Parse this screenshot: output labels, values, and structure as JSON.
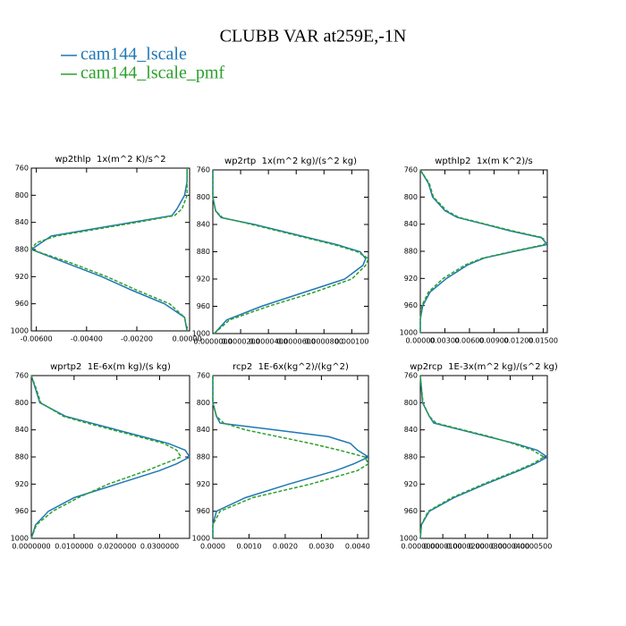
{
  "title": "CLUBB VAR at259E,-1N",
  "legend": [
    {
      "name": "cam144_lscale",
      "color": "#1f77b4"
    },
    {
      "name": "cam144_lscale_pmf",
      "color": "#2ca02c"
    }
  ],
  "chart_data": [
    {
      "type": "line",
      "title": "wp2thlp  1x(m^2 K)/s^2",
      "y": [
        760,
        780,
        800,
        820,
        830,
        840,
        850,
        860,
        870,
        880,
        890,
        900,
        920,
        940,
        960,
        980,
        1000
      ],
      "ylim": [
        760,
        1000
      ],
      "y_inverted": true,
      "yticks": [
        760,
        800,
        840,
        880,
        920,
        960,
        1000
      ],
      "xlim": [
        -0.0062,
        0.0001
      ],
      "xticks": [
        {
          "value": -0.006,
          "label": "-0.00600"
        },
        {
          "value": -0.004,
          "label": "-0.00400"
        },
        {
          "value": -0.002,
          "label": "-0.00200"
        },
        {
          "value": 0,
          "label": "0.00000"
        }
      ],
      "series": [
        {
          "values": [
            0,
            0,
            -0.0001,
            -0.0004,
            -0.0006,
            -0.0022,
            -0.0038,
            -0.0054,
            -0.0058,
            -0.0062,
            -0.0055,
            -0.0048,
            -0.0034,
            -0.0022,
            -0.0009,
            -0.0001,
            0
          ]
        },
        {
          "values": [
            0,
            0,
            0,
            -0.0002,
            -0.0005,
            -0.002,
            -0.0036,
            -0.0052,
            -0.006,
            -0.0062,
            -0.0054,
            -0.0046,
            -0.0032,
            -0.002,
            -0.0007,
            -0.0001,
            0
          ]
        }
      ]
    },
    {
      "type": "line",
      "title": "wp2rtp  1x(m^2 kg)/(s^2 kg)",
      "y": [
        760,
        780,
        800,
        820,
        830,
        840,
        850,
        860,
        870,
        880,
        890,
        900,
        920,
        940,
        960,
        980,
        1000
      ],
      "ylim": [
        760,
        1000
      ],
      "y_inverted": true,
      "yticks": [
        760,
        800,
        840,
        880,
        920,
        960,
        1000
      ],
      "xlim": [
        0,
        0.000112
      ],
      "xticks": [
        {
          "value": 0,
          "label": "0.0000000"
        },
        {
          "value": 2e-05,
          "label": "0.0000200"
        },
        {
          "value": 4e-05,
          "label": "0.0000400"
        },
        {
          "value": 6e-05,
          "label": "0.0000600"
        },
        {
          "value": 8e-05,
          "label": "0.0000800"
        },
        {
          "value": 0.0001,
          "label": "0.000100"
        }
      ],
      "series": [
        {
          "values": [
            0,
            0,
            0,
            2e-06,
            6e-06,
            3e-05,
            5e-05,
            7e-05,
            9e-05,
            0.000106,
            0.00011,
            0.000108,
            9.5e-05,
            6.5e-05,
            3.5e-05,
            1e-05,
            1e-06
          ]
        },
        {
          "values": [
            0,
            0,
            0,
            2e-06,
            7e-06,
            2.8e-05,
            4.8e-05,
            6.8e-05,
            8.8e-05,
            0.000104,
            0.000112,
            0.00011,
            0.0001,
            7.2e-05,
            4e-05,
            1.2e-05,
            1e-06
          ]
        }
      ]
    },
    {
      "type": "line",
      "title": "wpthlp2  1x(m K^2)/s",
      "y": [
        760,
        780,
        800,
        820,
        830,
        840,
        850,
        860,
        870,
        880,
        890,
        900,
        920,
        940,
        960,
        980,
        1000
      ],
      "ylim": [
        760,
        1000
      ],
      "y_inverted": true,
      "yticks": [
        760,
        800,
        840,
        880,
        920,
        960,
        1000
      ],
      "xlim": [
        0,
        0.0155
      ],
      "xticks": [
        {
          "value": 0,
          "label": "0.00000"
        },
        {
          "value": 0.003,
          "label": "0.00300"
        },
        {
          "value": 0.006,
          "label": "0.00600"
        },
        {
          "value": 0.009,
          "label": "0.00900"
        },
        {
          "value": 0.012,
          "label": "0.01200"
        },
        {
          "value": 0.015,
          "label": "0.01500"
        }
      ],
      "series": [
        {
          "values": [
            0,
            0.001,
            0.0015,
            0.003,
            0.0045,
            0.0078,
            0.011,
            0.0148,
            0.0155,
            0.0115,
            0.0078,
            0.0058,
            0.0032,
            0.0012,
            0.0003,
            0,
            0
          ]
        },
        {
          "values": [
            0,
            0.0011,
            0.0016,
            0.0032,
            0.0047,
            0.008,
            0.0113,
            0.015,
            0.0152,
            0.0113,
            0.0076,
            0.0055,
            0.0028,
            0.001,
            0.0002,
            0,
            0
          ]
        }
      ]
    },
    {
      "type": "line",
      "title": "wprtp2  1E-6x(m kg)/(s kg)",
      "y": [
        760,
        780,
        800,
        820,
        830,
        840,
        850,
        860,
        870,
        880,
        890,
        900,
        920,
        940,
        960,
        980,
        1000
      ],
      "ylim": [
        760,
        1000
      ],
      "y_inverted": true,
      "yticks": [
        760,
        800,
        840,
        880,
        920,
        960,
        1000
      ],
      "xlim": [
        0,
        0.037
      ],
      "xticks": [
        {
          "value": 0,
          "label": "0.0000000"
        },
        {
          "value": 0.01,
          "label": "0.0100000"
        },
        {
          "value": 0.02,
          "label": "0.0200000"
        },
        {
          "value": 0.03,
          "label": "0.0300000"
        }
      ],
      "series": [
        {
          "values": [
            0,
            0.001,
            0.002,
            0.008,
            0.014,
            0.02,
            0.026,
            0.032,
            0.036,
            0.037,
            0.034,
            0.03,
            0.02,
            0.01,
            0.004,
            0.001,
            0
          ]
        },
        {
          "values": [
            0,
            0.0012,
            0.0022,
            0.0075,
            0.013,
            0.019,
            0.025,
            0.031,
            0.034,
            0.035,
            0.031,
            0.027,
            0.018,
            0.011,
            0.005,
            0.0012,
            0
          ]
        }
      ]
    },
    {
      "type": "line",
      "title": "rcp2  1E-6x(kg^2)/(kg^2)",
      "y": [
        760,
        780,
        800,
        820,
        830,
        840,
        850,
        860,
        870,
        880,
        890,
        900,
        920,
        940,
        960,
        980,
        1000
      ],
      "ylim": [
        760,
        1000
      ],
      "y_inverted": true,
      "yticks": [
        760,
        800,
        840,
        880,
        920,
        960,
        1000
      ],
      "xlim": [
        0,
        0.0043
      ],
      "xticks": [
        {
          "value": 0,
          "label": "0.0000"
        },
        {
          "value": 0.001,
          "label": "0.0010"
        },
        {
          "value": 0.002,
          "label": "0.0020"
        },
        {
          "value": 0.003,
          "label": "0.0030"
        },
        {
          "value": 0.004,
          "label": "0.0040"
        }
      ],
      "series": [
        {
          "values": [
            0,
            0,
            0,
            0.0001,
            0.0002,
            0.0017,
            0.0032,
            0.0038,
            0.004,
            0.0043,
            0.0039,
            0.0034,
            0.0021,
            0.0009,
            0.0001,
            0,
            0
          ]
        },
        {
          "values": [
            0,
            0,
            0,
            0.0001,
            0.0003,
            0.0009,
            0.0018,
            0.0027,
            0.0035,
            0.0042,
            0.0043,
            0.004,
            0.0027,
            0.0011,
            0.0002,
            0,
            0
          ]
        }
      ]
    },
    {
      "type": "line",
      "title": "wp2rcp  1E-3x(m^2 kg)/(s^2 kg)",
      "y": [
        760,
        780,
        800,
        820,
        830,
        840,
        850,
        860,
        870,
        880,
        890,
        900,
        920,
        940,
        960,
        980,
        1000
      ],
      "ylim": [
        760,
        1000
      ],
      "y_inverted": true,
      "yticks": [
        760,
        800,
        840,
        880,
        920,
        960,
        1000
      ],
      "xlim": [
        0,
        5.65e-05
      ],
      "xticks": [
        {
          "value": 0,
          "label": "0.0000000"
        },
        {
          "value": 1e-05,
          "label": "0.0000100"
        },
        {
          "value": 2e-05,
          "label": "0.0000200"
        },
        {
          "value": 3e-05,
          "label": "0.0000300"
        },
        {
          "value": 4e-05,
          "label": "0.0000400"
        },
        {
          "value": 5e-05,
          "label": "0.0000500"
        }
      ],
      "series": [
        {
          "values": [
            0,
            5e-07,
            1e-06,
            4e-06,
            6e-06,
            1.8e-05,
            3e-05,
            4.2e-05,
            5.2e-05,
            5.65e-05,
            5.1e-05,
            4.4e-05,
            2.9e-05,
            1.5e-05,
            4e-06,
            5e-07,
            0
          ]
        },
        {
          "values": [
            0,
            6e-07,
            1.2e-06,
            4e-06,
            7e-06,
            1.9e-05,
            3.1e-05,
            4.1e-05,
            5e-05,
            5.5e-05,
            5e-05,
            4.3e-05,
            2.8e-05,
            1.4e-05,
            3.5e-06,
            5e-07,
            0
          ]
        }
      ]
    }
  ]
}
